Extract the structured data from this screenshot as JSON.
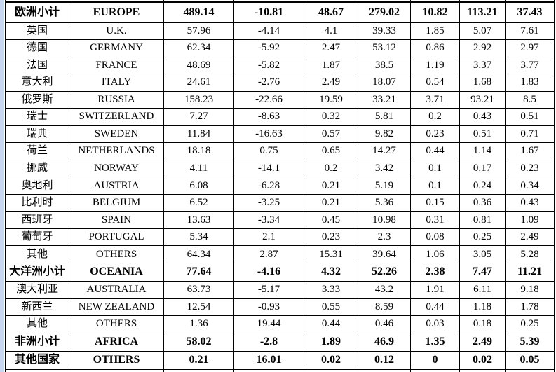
{
  "colors": {
    "background": "#ffffff",
    "table_border": "#000000",
    "text": "#000000",
    "strip_fill": "#c8d7eb",
    "strip_border": "#9db4d0"
  },
  "chart_data": {
    "type": "table",
    "title": "",
    "rows": [
      {
        "cn": "欧洲小计",
        "en": "EUROPE",
        "values": [
          "489.14",
          "-10.81",
          "48.67",
          "279.02",
          "10.82",
          "113.21",
          "37.43"
        ],
        "bold": true
      },
      {
        "cn": "英国",
        "en": "U.K.",
        "values": [
          "57.96",
          "-4.14",
          "4.1",
          "39.33",
          "1.85",
          "5.07",
          "7.61"
        ],
        "bold": false
      },
      {
        "cn": "德国",
        "en": "GERMANY",
        "values": [
          "62.34",
          "-5.92",
          "2.47",
          "53.12",
          "0.86",
          "2.92",
          "2.97"
        ],
        "bold": false
      },
      {
        "cn": "法国",
        "en": "FRANCE",
        "values": [
          "48.69",
          "-5.82",
          "1.87",
          "38.5",
          "1.19",
          "3.37",
          "3.77"
        ],
        "bold": false
      },
      {
        "cn": "意大利",
        "en": "ITALY",
        "values": [
          "24.61",
          "-2.76",
          "2.49",
          "18.07",
          "0.54",
          "1.68",
          "1.83"
        ],
        "bold": false
      },
      {
        "cn": "俄罗斯",
        "en": "RUSSIA",
        "values": [
          "158.23",
          "-22.66",
          "19.59",
          "33.21",
          "3.71",
          "93.21",
          "8.5"
        ],
        "bold": false
      },
      {
        "cn": "瑞士",
        "en": "SWITZERLAND",
        "values": [
          "7.27",
          "-8.63",
          "0.32",
          "5.81",
          "0.2",
          "0.43",
          "0.51"
        ],
        "bold": false
      },
      {
        "cn": "瑞典",
        "en": "SWEDEN",
        "values": [
          "11.84",
          "-16.63",
          "0.57",
          "9.82",
          "0.23",
          "0.51",
          "0.71"
        ],
        "bold": false
      },
      {
        "cn": "荷兰",
        "en": "NETHERLANDS",
        "values": [
          "18.18",
          "0.75",
          "0.65",
          "14.27",
          "0.44",
          "1.14",
          "1.67"
        ],
        "bold": false
      },
      {
        "cn": "挪威",
        "en": "NORWAY",
        "values": [
          "4.11",
          "-14.1",
          "0.2",
          "3.42",
          "0.1",
          "0.17",
          "0.23"
        ],
        "bold": false
      },
      {
        "cn": "奥地利",
        "en": "AUSTRIA",
        "values": [
          "6.08",
          "-6.28",
          "0.21",
          "5.19",
          "0.1",
          "0.24",
          "0.34"
        ],
        "bold": false
      },
      {
        "cn": "比利时",
        "en": "BELGIUM",
        "values": [
          "6.52",
          "-3.25",
          "0.21",
          "5.36",
          "0.15",
          "0.36",
          "0.43"
        ],
        "bold": false
      },
      {
        "cn": "西班牙",
        "en": "SPAIN",
        "values": [
          "13.63",
          "-3.34",
          "0.45",
          "10.98",
          "0.31",
          "0.81",
          "1.09"
        ],
        "bold": false
      },
      {
        "cn": "葡萄牙",
        "en": "PORTUGAL",
        "values": [
          "5.34",
          "2.1",
          "0.23",
          "2.3",
          "0.08",
          "0.25",
          "2.49"
        ],
        "bold": false
      },
      {
        "cn": "其他",
        "en": "OTHERS",
        "values": [
          "64.34",
          "2.87",
          "15.31",
          "39.64",
          "1.06",
          "3.05",
          "5.28"
        ],
        "bold": false
      },
      {
        "cn": "大洋洲小计",
        "en": "OCEANIA",
        "values": [
          "77.64",
          "-4.16",
          "4.32",
          "52.26",
          "2.38",
          "7.47",
          "11.21"
        ],
        "bold": true
      },
      {
        "cn": "澳大利亚",
        "en": "AUSTRALIA",
        "values": [
          "63.73",
          "-5.17",
          "3.33",
          "43.2",
          "1.91",
          "6.11",
          "9.18"
        ],
        "bold": false
      },
      {
        "cn": "新西兰",
        "en": "NEW ZEALAND",
        "values": [
          "12.54",
          "-0.93",
          "0.55",
          "8.59",
          "0.44",
          "1.18",
          "1.78"
        ],
        "bold": false
      },
      {
        "cn": "其他",
        "en": "OTHERS",
        "values": [
          "1.36",
          "19.44",
          "0.44",
          "0.46",
          "0.03",
          "0.18",
          "0.25"
        ],
        "bold": false
      },
      {
        "cn": "非洲小计",
        "en": "AFRICA",
        "values": [
          "58.02",
          "-2.8",
          "1.89",
          "46.9",
          "1.35",
          "2.49",
          "5.39"
        ],
        "bold": true
      },
      {
        "cn": "其他国家",
        "en": "OTHERS",
        "values": [
          "0.21",
          "16.01",
          "0.02",
          "0.12",
          "0",
          "0.02",
          "0.05"
        ],
        "bold": true
      }
    ]
  }
}
